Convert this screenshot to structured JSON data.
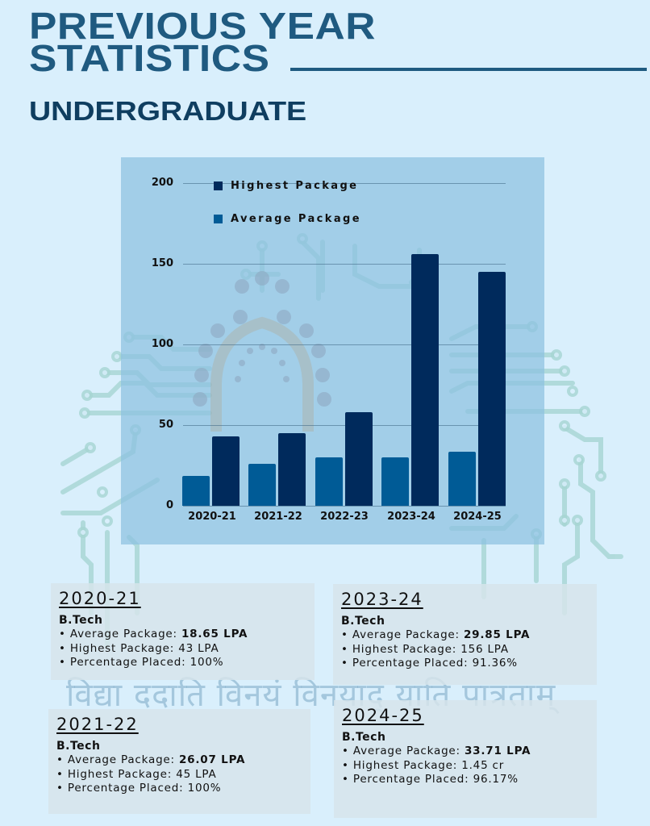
{
  "header": {
    "title_line1": "PREVIOUS YEAR",
    "title_line2": "STATISTICS",
    "subtitle": "UNDERGRADUATE"
  },
  "colors": {
    "background": "#d9effc",
    "title": "#1f5a80",
    "subtitle": "#0f3e60",
    "highest_bar": "#002a5c",
    "average_bar": "#005b96",
    "chart_panel": "#8cc0e1"
  },
  "chart_data": {
    "type": "bar",
    "title": "",
    "xlabel": "",
    "ylabel": "",
    "categories": [
      "2020-21",
      "2021-22",
      "2022-23",
      "2023-24",
      "2024-25"
    ],
    "series": [
      {
        "name": "Average Package",
        "color": "#005b96",
        "values": [
          18.65,
          26.07,
          30,
          29.85,
          33.71
        ]
      },
      {
        "name": "Highest Package",
        "color": "#002a5c",
        "values": [
          43,
          45,
          58,
          156,
          145
        ]
      }
    ],
    "ylim": [
      0,
      200
    ],
    "yticks": [
      "0",
      "50",
      "100",
      "150",
      "200"
    ],
    "grid": true,
    "legend_position": "top-left inside",
    "legend": [
      "Highest Package",
      "Average Package"
    ]
  },
  "motto": "विद्या ददाति विनयं विनयाद् याति पात्रताम्",
  "cards": [
    {
      "year": "2020-21",
      "program": "B.Tech",
      "avg_label": "• Average Package: ",
      "avg_value": "18.65 LPA",
      "highest": "• Highest Package: 43 LPA",
      "placed": "• Percentage Placed: 100%"
    },
    {
      "year": "2023-24",
      "program": "B.Tech",
      "avg_label": "• Average Package: ",
      "avg_value": "29.85 LPA",
      "highest": "• Highest Package: 156 LPA",
      "placed": "• Percentage Placed: 91.36%"
    },
    {
      "year": "2021-22",
      "program": "B.Tech",
      "avg_label": "• Average Package: ",
      "avg_value": "26.07 LPA",
      "highest": "• Highest Package: 45 LPA",
      "placed": "• Percentage Placed: 100%"
    },
    {
      "year": "2024-25",
      "program": "B.Tech",
      "avg_label": "• Average Package: ",
      "avg_value": "33.71 LPA",
      "highest": "• Highest Package: 1.45 cr",
      "placed": "• Percentage Placed: 96.17%"
    }
  ]
}
